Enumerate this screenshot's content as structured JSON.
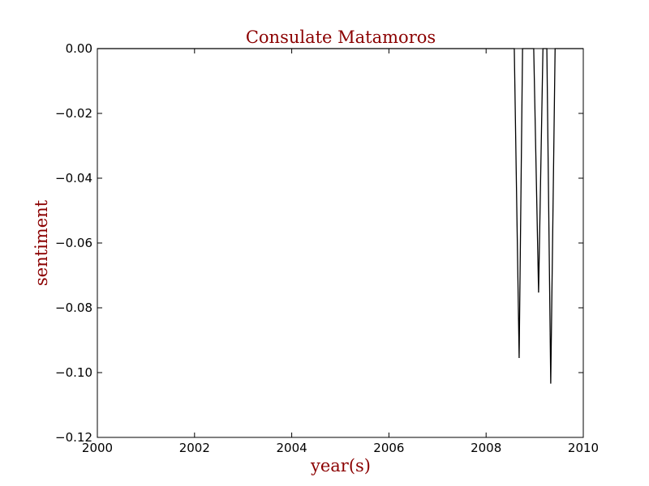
{
  "chart_data": {
    "type": "line",
    "title": "Consulate Matamoros",
    "xlabel": "year(s)",
    "ylabel": "sentiment",
    "xlim": [
      2000,
      2010
    ],
    "ylim": [
      -0.12,
      0.0
    ],
    "x_ticks": [
      2000,
      2002,
      2004,
      2006,
      2008,
      2010
    ],
    "x_tick_labels": [
      "2000",
      "2002",
      "2004",
      "2006",
      "2008",
      "2010"
    ],
    "y_ticks": [
      0.0,
      -0.02,
      -0.04,
      -0.06,
      -0.08,
      -0.1,
      -0.12
    ],
    "y_tick_labels": [
      "0.00",
      "−0.02",
      "−0.04",
      "−0.06",
      "−0.08",
      "−0.10",
      "−0.12"
    ],
    "grid": false,
    "colors": {
      "line": "#000000",
      "title": "#8b0000",
      "axis_label": "#8b0000"
    },
    "series": [
      {
        "x": [
          2000.0,
          2008.58,
          2008.68,
          2008.75,
          2008.98,
          2009.08,
          2009.17,
          2009.25,
          2009.33,
          2009.42,
          2010.0
        ],
        "y": [
          0.0,
          0.0,
          -0.0955,
          0.0,
          0.0,
          -0.0753,
          0.0,
          0.0,
          -0.1034,
          0.0,
          0.0
        ]
      }
    ]
  }
}
